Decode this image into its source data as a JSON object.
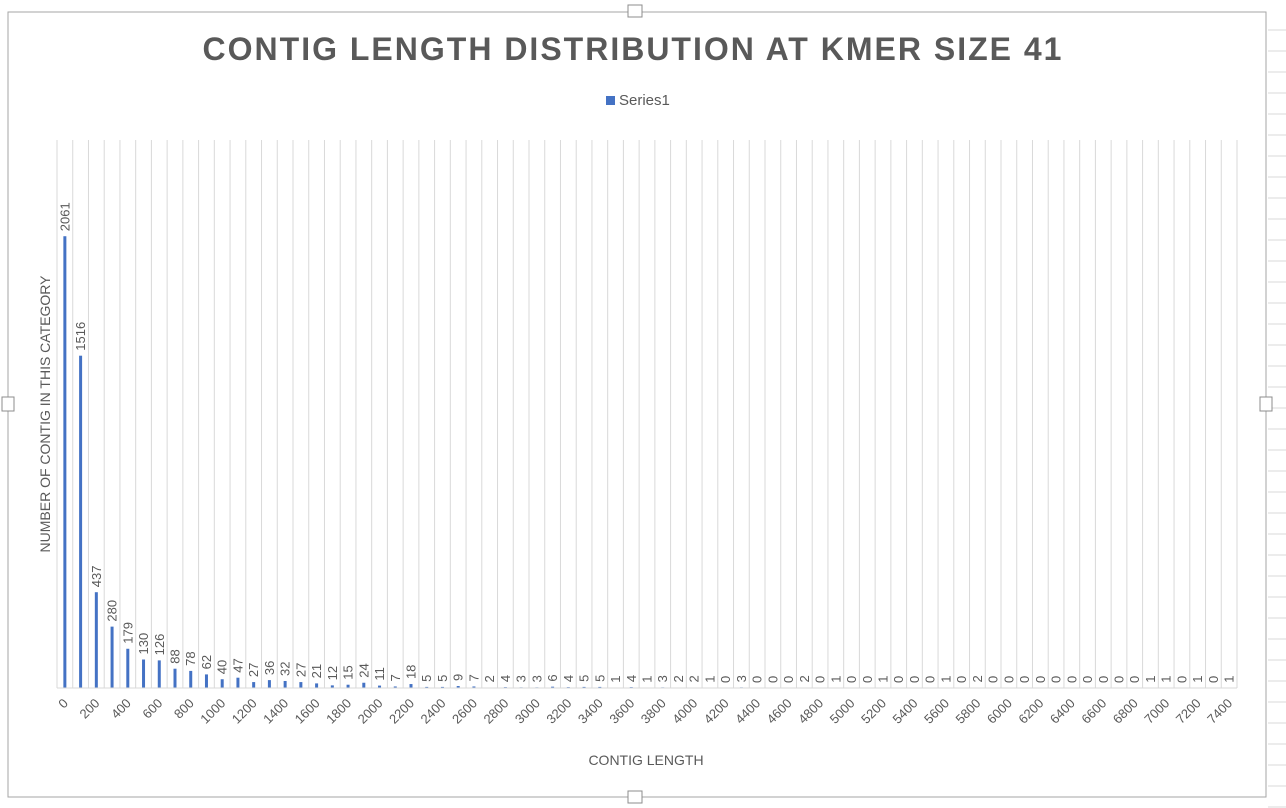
{
  "colors": {
    "bar": "#4472C4",
    "gridline": "#d9d9d9",
    "text": "#595959",
    "frame": "#a6a6a6",
    "sheet_grid": "#d9d9d9"
  },
  "chart_data": {
    "type": "bar",
    "title": "CONTIG LENGTH DISTRIBUTION AT KMER SIZE 41",
    "xlabel": "CONTIG LENGTH",
    "ylabel": "NUMBER OF CONTIG IN THIS CATEGORY",
    "legend_position": "top",
    "grid": true,
    "ylim": [
      0,
      2500
    ],
    "categories": [
      "0",
      "100",
      "200",
      "300",
      "400",
      "500",
      "600",
      "700",
      "800",
      "900",
      "1000",
      "1100",
      "1200",
      "1300",
      "1400",
      "1500",
      "1600",
      "1700",
      "1800",
      "1900",
      "2000",
      "2100",
      "2200",
      "2300",
      "2400",
      "2500",
      "2600",
      "2700",
      "2800",
      "2900",
      "3000",
      "3100",
      "3200",
      "3300",
      "3400",
      "3500",
      "3600",
      "3700",
      "3800",
      "3900",
      "4000",
      "4100",
      "4200",
      "4300",
      "4400",
      "4500",
      "4600",
      "4700",
      "4800",
      "4900",
      "5000",
      "5100",
      "5200",
      "5300",
      "5400",
      "5500",
      "5600",
      "5700",
      "5800",
      "5900",
      "6000",
      "6100",
      "6200",
      "6300",
      "6400",
      "6500",
      "6600",
      "6700",
      "6800",
      "6900",
      "7000",
      "7100",
      "7200",
      "7300",
      "7400"
    ],
    "tick_labels": [
      "0",
      "200",
      "400",
      "600",
      "800",
      "1000",
      "1200",
      "1400",
      "1600",
      "1800",
      "2000",
      "2200",
      "2400",
      "2600",
      "2800",
      "3000",
      "3200",
      "3400",
      "3600",
      "3800",
      "4000",
      "4200",
      "4400",
      "4600",
      "4800",
      "5000",
      "5200",
      "5400",
      "5600",
      "5800",
      "6000",
      "6200",
      "6400",
      "6600",
      "6800",
      "7000",
      "7200",
      "7400"
    ],
    "series": [
      {
        "name": "Series1",
        "values": [
          2061,
          1516,
          437,
          280,
          179,
          130,
          126,
          88,
          78,
          62,
          40,
          47,
          27,
          36,
          32,
          27,
          21,
          12,
          15,
          24,
          11,
          7,
          18,
          5,
          5,
          9,
          7,
          2,
          4,
          3,
          3,
          6,
          4,
          5,
          5,
          1,
          4,
          1,
          3,
          2,
          2,
          1,
          0,
          3,
          0,
          0,
          0,
          2,
          0,
          1,
          0,
          0,
          1,
          0,
          0,
          0,
          1,
          0,
          2,
          0,
          0,
          0,
          0,
          0,
          0,
          0,
          0,
          0,
          0,
          1,
          1,
          0,
          1,
          0,
          1
        ]
      }
    ]
  }
}
